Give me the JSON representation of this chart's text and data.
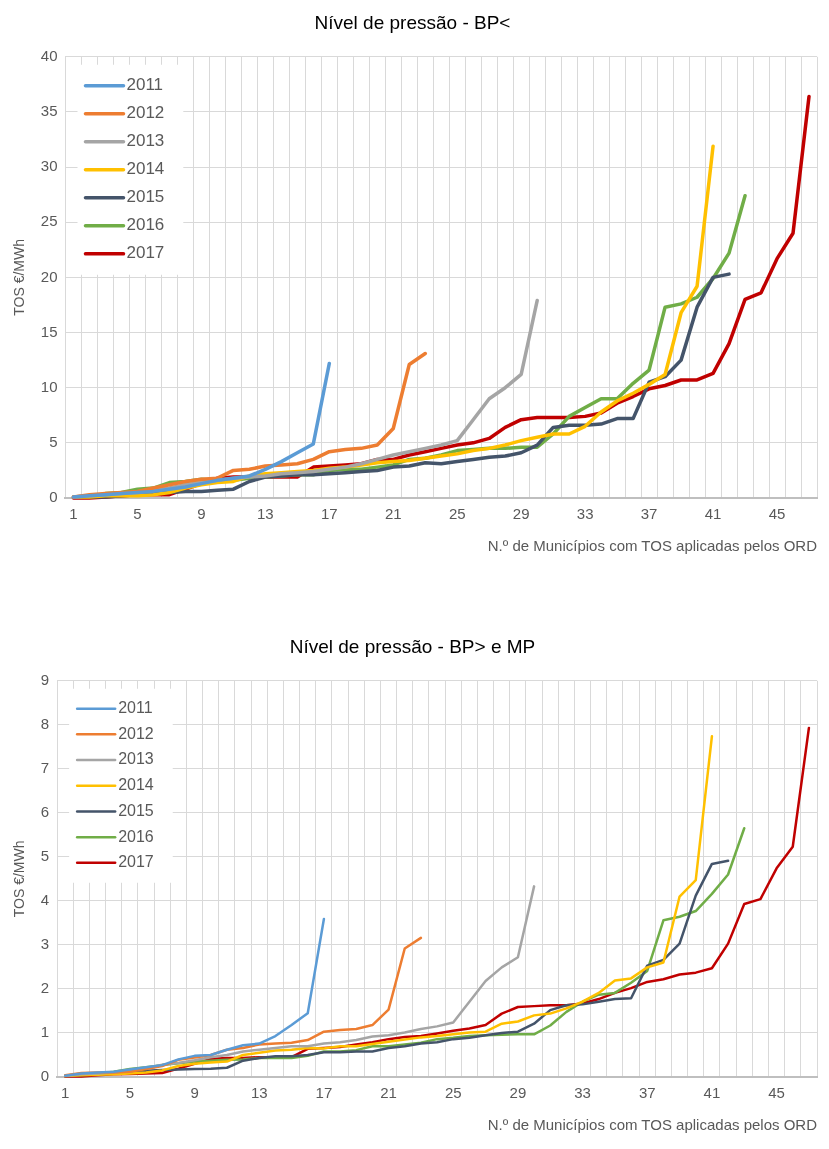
{
  "chart_data": [
    {
      "type": "line",
      "title": "Nível de pressão - BP<",
      "xlabel": "N.º de Municípios com TOS aplicadas pelos ORD",
      "ylabel": "TOS €/MWh",
      "categories": [
        "1",
        null,
        null,
        null,
        "5",
        null,
        null,
        null,
        "9",
        null,
        null,
        null,
        "13",
        null,
        null,
        null,
        "17",
        null,
        null,
        null,
        "21",
        null,
        null,
        null,
        "25",
        null,
        null,
        null,
        "29",
        null,
        null,
        null,
        "33",
        null,
        null,
        null,
        "37",
        null,
        null,
        null,
        "41",
        null,
        null,
        null,
        "45",
        null,
        null
      ],
      "series": [
        {
          "name": "2011",
          "color": "#5b9bd5",
          "values": [
            0.1,
            0.2,
            0.3,
            0.4,
            0.5,
            0.6,
            0.8,
            1.0,
            1.3,
            1.6,
            1.8,
            2.0,
            2.6,
            3.3,
            4.1,
            4.9,
            12.2,
            null,
            null,
            null,
            null,
            null,
            null,
            null,
            null,
            null,
            null,
            null,
            null,
            null,
            null,
            null,
            null,
            null,
            null,
            null,
            null,
            null,
            null,
            null,
            null,
            null,
            null,
            null,
            null,
            null,
            null
          ]
        },
        {
          "name": "2012",
          "color": "#ed7d31",
          "values": [
            0.1,
            0.3,
            0.4,
            0.5,
            0.6,
            0.9,
            1.2,
            1.5,
            1.7,
            1.8,
            2.5,
            2.6,
            2.9,
            3.0,
            3.1,
            3.5,
            4.2,
            4.4,
            4.5,
            4.8,
            6.3,
            12.1,
            13.1,
            null,
            null,
            null,
            null,
            null,
            null,
            null,
            null,
            null,
            null,
            null,
            null,
            null,
            null,
            null,
            null,
            null,
            null,
            null,
            null,
            null,
            null,
            null,
            null
          ]
        },
        {
          "name": "2013",
          "color": "#a5a5a5",
          "values": [
            0.1,
            0.2,
            0.3,
            0.4,
            0.5,
            0.7,
            0.9,
            1.2,
            1.4,
            1.6,
            1.8,
            1.9,
            2.0,
            2.2,
            2.3,
            2.4,
            2.6,
            2.8,
            3.1,
            3.5,
            3.9,
            4.2,
            4.5,
            4.8,
            5.2,
            7.1,
            9.0,
            10.0,
            11.2,
            17.9,
            null,
            null,
            null,
            null,
            null,
            null,
            null,
            null,
            null,
            null,
            null,
            null,
            null,
            null,
            null,
            null,
            null
          ]
        },
        {
          "name": "2014",
          "color": "#ffc000",
          "values": [
            0.1,
            0.1,
            0.2,
            0.2,
            0.2,
            0.3,
            0.5,
            0.9,
            1.2,
            1.4,
            1.5,
            2.0,
            2.2,
            2.3,
            2.4,
            2.5,
            2.7,
            2.8,
            3.0,
            3.2,
            3.3,
            3.4,
            3.6,
            3.8,
            4.0,
            4.3,
            4.5,
            4.8,
            5.2,
            5.5,
            5.8,
            5.8,
            6.5,
            7.8,
            8.8,
            9.5,
            10.3,
            11.2,
            16.8,
            19.2,
            31.9,
            null,
            null,
            null,
            null,
            null,
            null
          ]
        },
        {
          "name": "2015",
          "color": "#44546a",
          "values": [
            0.1,
            0.1,
            0.1,
            0.2,
            0.3,
            0.4,
            0.5,
            0.6,
            0.6,
            0.7,
            0.8,
            1.5,
            1.9,
            2.0,
            2.1,
            2.1,
            2.2,
            2.3,
            2.4,
            2.5,
            2.8,
            2.9,
            3.2,
            3.1,
            3.3,
            3.5,
            3.7,
            3.8,
            4.1,
            4.8,
            6.4,
            6.6,
            6.6,
            6.7,
            7.2,
            7.2,
            10.5,
            11.0,
            12.5,
            17.3,
            20.0,
            20.3,
            null,
            null,
            null,
            null,
            null
          ]
        },
        {
          "name": "2016",
          "color": "#70ad47",
          "values": [
            null,
            null,
            0.4,
            0.5,
            0.8,
            0.9,
            1.4,
            1.5,
            1.7,
            1.6,
            1.6,
            1.8,
            1.9,
            2.0,
            2.1,
            2.1,
            2.5,
            2.6,
            2.6,
            2.8,
            3.0,
            3.5,
            3.6,
            3.9,
            4.3,
            4.4,
            4.5,
            4.5,
            4.6,
            4.6,
            5.8,
            7.4,
            8.2,
            9.0,
            9.0,
            10.4,
            11.6,
            17.3,
            17.6,
            18.2,
            19.9,
            22.2,
            27.4,
            null,
            null,
            null,
            null
          ]
        },
        {
          "name": "2017",
          "color": "#c00000",
          "values": [
            0.0,
            0.0,
            0.1,
            0.2,
            0.3,
            0.3,
            0.3,
            0.8,
            1.3,
            1.8,
            1.9,
            1.9,
            1.9,
            1.9,
            1.9,
            2.8,
            2.9,
            3.0,
            3.1,
            3.5,
            3.5,
            3.9,
            4.2,
            4.5,
            4.8,
            5.0,
            5.4,
            6.4,
            7.1,
            7.3,
            7.3,
            7.3,
            7.4,
            7.7,
            8.6,
            9.2,
            9.9,
            10.2,
            10.7,
            10.7,
            11.3,
            14.0,
            18.0,
            18.6,
            21.7,
            24.0,
            36.4
          ]
        }
      ],
      "ylim": [
        0,
        40
      ],
      "yticks": [
        0,
        5,
        10,
        15,
        20,
        25,
        30,
        35,
        40
      ],
      "grid": true,
      "legend": "top left",
      "marker": "none"
    },
    {
      "type": "line",
      "title": "Nível de pressão - BP> e MP",
      "xlabel": "N.º de Municípios com TOS aplicadas pelos ORD",
      "ylabel": "TOS €/MWh",
      "categories": [
        "1",
        null,
        null,
        null,
        "5",
        null,
        null,
        null,
        "9",
        null,
        null,
        null,
        "13",
        null,
        null,
        null,
        "17",
        null,
        null,
        null,
        "21",
        null,
        null,
        null,
        "25",
        null,
        null,
        null,
        "29",
        null,
        null,
        null,
        "33",
        null,
        null,
        null,
        "37",
        null,
        null,
        null,
        "41",
        null,
        null,
        null,
        "45",
        null,
        null
      ],
      "series": [
        {
          "name": "2011",
          "color": "#5b9bd5",
          "values": [
            0.03,
            0.08,
            0.1,
            0.12,
            0.17,
            0.22,
            0.27,
            0.4,
            0.48,
            0.5,
            0.62,
            0.72,
            0.76,
            0.93,
            1.18,
            1.45,
            3.59,
            null,
            null,
            null,
            null,
            null,
            null,
            null,
            null,
            null,
            null,
            null,
            null,
            null,
            null,
            null,
            null,
            null,
            null,
            null,
            null,
            null,
            null,
            null,
            null,
            null,
            null,
            null,
            null,
            null,
            null
          ]
        },
        {
          "name": "2012",
          "color": "#ed7d31",
          "values": [
            0.04,
            0.09,
            0.1,
            0.1,
            0.12,
            0.18,
            0.25,
            0.39,
            0.44,
            0.5,
            0.62,
            0.66,
            0.74,
            0.76,
            0.78,
            0.84,
            1.03,
            1.07,
            1.09,
            1.18,
            1.53,
            2.92,
            3.16,
            null,
            null,
            null,
            null,
            null,
            null,
            null,
            null,
            null,
            null,
            null,
            null,
            null,
            null,
            null,
            null,
            null,
            null,
            null,
            null,
            null,
            null,
            null,
            null
          ]
        },
        {
          "name": "2013",
          "color": "#a5a5a5",
          "values": [
            0.03,
            0.06,
            0.08,
            0.1,
            0.15,
            0.2,
            0.28,
            0.32,
            0.38,
            0.45,
            0.5,
            0.58,
            0.62,
            0.66,
            0.7,
            0.7,
            0.76,
            0.79,
            0.84,
            0.92,
            0.95,
            1.01,
            1.09,
            1.15,
            1.24,
            1.71,
            2.18,
            2.49,
            2.72,
            4.33,
            null,
            null,
            null,
            null,
            null,
            null,
            null,
            null,
            null,
            null,
            null,
            null,
            null,
            null,
            null,
            null,
            null
          ]
        },
        {
          "name": "2014",
          "color": "#ffc000",
          "values": [
            0.02,
            0.04,
            0.05,
            0.06,
            0.08,
            0.1,
            0.15,
            0.25,
            0.3,
            0.33,
            0.35,
            0.5,
            0.55,
            0.6,
            0.62,
            0.66,
            0.65,
            0.7,
            0.7,
            0.75,
            0.8,
            0.85,
            0.9,
            0.93,
            0.97,
            1.01,
            1.03,
            1.21,
            1.26,
            1.4,
            1.44,
            1.56,
            1.71,
            1.91,
            2.19,
            2.24,
            2.49,
            2.6,
            4.1,
            4.47,
            7.74,
            null,
            null,
            null,
            null,
            null,
            null
          ]
        },
        {
          "name": "2015",
          "color": "#44546a",
          "values": [
            0.02,
            0.04,
            0.06,
            0.08,
            0.1,
            0.14,
            0.16,
            0.17,
            0.18,
            0.19,
            0.21,
            0.37,
            0.43,
            0.47,
            0.47,
            0.5,
            0.56,
            0.56,
            0.58,
            0.58,
            0.66,
            0.7,
            0.76,
            0.79,
            0.86,
            0.89,
            0.95,
            1.0,
            1.03,
            1.21,
            1.52,
            1.63,
            1.65,
            1.71,
            1.77,
            1.79,
            2.53,
            2.66,
            3.03,
            4.12,
            4.84,
            4.91,
            null,
            null,
            null,
            null,
            null
          ]
        },
        {
          "name": "2016",
          "color": "#70ad47",
          "values": [
            null,
            null,
            0.08,
            0.12,
            0.18,
            0.22,
            0.27,
            0.31,
            0.35,
            0.37,
            0.39,
            0.4,
            0.43,
            0.43,
            0.43,
            0.48,
            0.58,
            0.58,
            0.61,
            0.7,
            0.7,
            0.74,
            0.78,
            0.86,
            0.89,
            0.93,
            0.95,
            0.96,
            0.97,
            0.97,
            1.17,
            1.48,
            1.71,
            1.87,
            1.91,
            2.14,
            2.41,
            3.56,
            3.64,
            3.77,
            4.16,
            4.6,
            5.65,
            null,
            null,
            null,
            null
          ]
        },
        {
          "name": "2017",
          "color": "#c00000",
          "values": [
            0.01,
            0.01,
            0.04,
            0.06,
            0.07,
            0.08,
            0.09,
            0.19,
            0.3,
            0.41,
            0.43,
            0.43,
            0.45,
            0.45,
            0.45,
            0.64,
            0.66,
            0.68,
            0.74,
            0.79,
            0.86,
            0.91,
            0.93,
            0.99,
            1.05,
            1.1,
            1.18,
            1.44,
            1.59,
            1.61,
            1.63,
            1.63,
            1.67,
            1.77,
            1.91,
            2.02,
            2.16,
            2.22,
            2.33,
            2.37,
            2.47,
            3.03,
            3.93,
            4.04,
            4.74,
            5.23,
            7.93
          ]
        }
      ],
      "ylim": [
        0,
        9
      ],
      "yticks": [
        0,
        1,
        2,
        3,
        4,
        5,
        6,
        7,
        8,
        9
      ],
      "grid": true,
      "legend": "top left",
      "marker": "none"
    }
  ]
}
